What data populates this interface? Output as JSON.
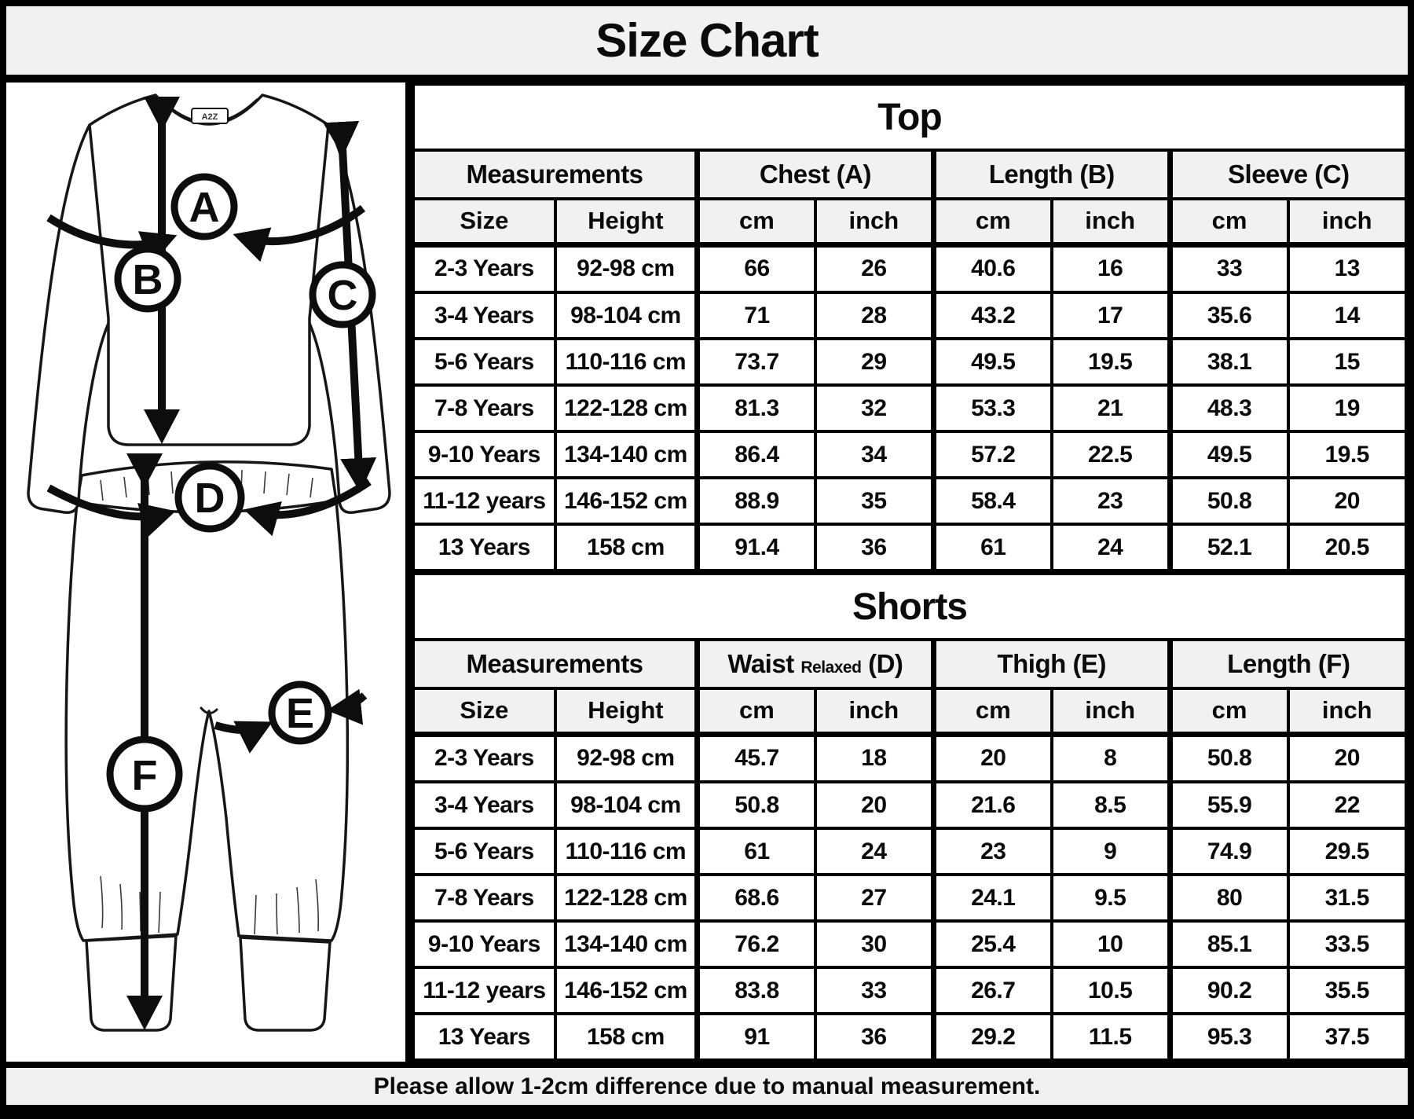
{
  "title": "Size Chart",
  "footer_note": "Please allow 1-2cm difference due to manual measurement.",
  "diagram": {
    "brand_label": "A2Z",
    "markers": {
      "a": "A",
      "b": "B",
      "c": "C",
      "d": "D",
      "e": "E",
      "f": "F"
    }
  },
  "top_table": {
    "section_title": "Top",
    "group_headers": {
      "measurements": "Measurements",
      "col1": "Chest (A)",
      "col2": "Length (B)",
      "col3": "Sleeve (C)"
    },
    "sub_headers": {
      "size": "Size",
      "height": "Height",
      "cm": "cm",
      "inch": "inch"
    },
    "rows": [
      [
        "2-3 Years",
        "92-98 cm",
        "66",
        "26",
        "40.6",
        "16",
        "33",
        "13"
      ],
      [
        "3-4 Years",
        "98-104 cm",
        "71",
        "28",
        "43.2",
        "17",
        "35.6",
        "14"
      ],
      [
        "5-6 Years",
        "110-116 cm",
        "73.7",
        "29",
        "49.5",
        "19.5",
        "38.1",
        "15"
      ],
      [
        "7-8 Years",
        "122-128 cm",
        "81.3",
        "32",
        "53.3",
        "21",
        "48.3",
        "19"
      ],
      [
        "9-10 Years",
        "134-140 cm",
        "86.4",
        "34",
        "57.2",
        "22.5",
        "49.5",
        "19.5"
      ],
      [
        "11-12 years",
        "146-152 cm",
        "88.9",
        "35",
        "58.4",
        "23",
        "50.8",
        "20"
      ],
      [
        "13 Years",
        "158 cm",
        "91.4",
        "36",
        "61",
        "24",
        "52.1",
        "20.5"
      ]
    ]
  },
  "shorts_table": {
    "section_title": "Shorts",
    "group_headers": {
      "measurements": "Measurements",
      "col1_main": "Waist",
      "col1_small": "Relaxed",
      "col1_suffix": "(D)",
      "col2": "Thigh (E)",
      "col3": "Length (F)"
    },
    "sub_headers": {
      "size": "Size",
      "height": "Height",
      "cm": "cm",
      "inch": "inch"
    },
    "rows": [
      [
        "2-3 Years",
        "92-98 cm",
        "45.7",
        "18",
        "20",
        "8",
        "50.8",
        "20"
      ],
      [
        "3-4 Years",
        "98-104 cm",
        "50.8",
        "20",
        "21.6",
        "8.5",
        "55.9",
        "22"
      ],
      [
        "5-6 Years",
        "110-116 cm",
        "61",
        "24",
        "23",
        "9",
        "74.9",
        "29.5"
      ],
      [
        "7-8 Years",
        "122-128 cm",
        "68.6",
        "27",
        "24.1",
        "9.5",
        "80",
        "31.5"
      ],
      [
        "9-10 Years",
        "134-140 cm",
        "76.2",
        "30",
        "25.4",
        "10",
        "85.1",
        "33.5"
      ],
      [
        "11-12 years",
        "146-152 cm",
        "83.8",
        "33",
        "26.7",
        "10.5",
        "90.2",
        "35.5"
      ],
      [
        "13 Years",
        "158 cm",
        "91",
        "36",
        "29.2",
        "11.5",
        "95.3",
        "37.5"
      ]
    ]
  }
}
